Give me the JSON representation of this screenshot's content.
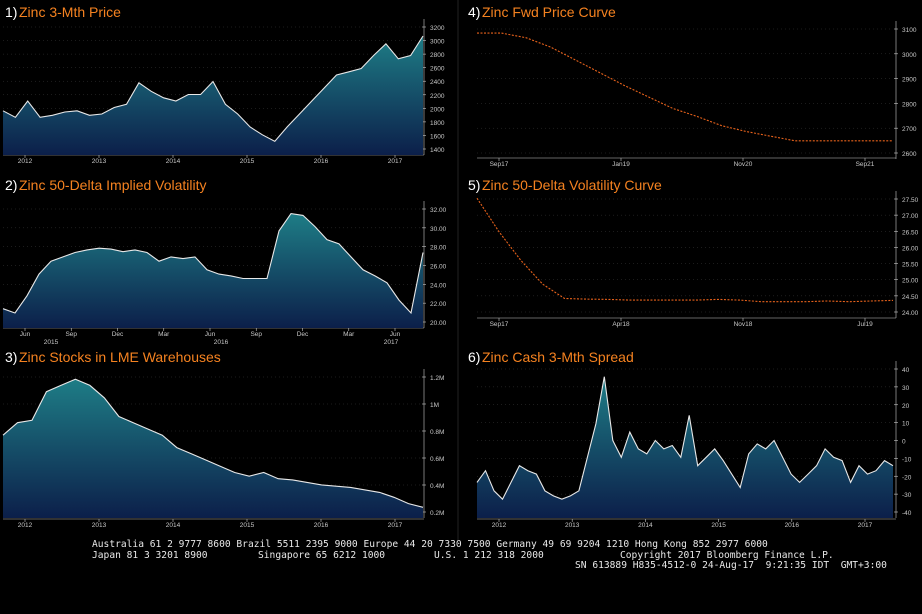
{
  "colors": {
    "background": "#000000",
    "title": "#f58220",
    "title_number": "#ffffff",
    "area_top": "#1e7d86",
    "area_bottom": "#0c1f4a",
    "area_line": "#e8e8e8",
    "curve": "#e8621b",
    "axis_text": "#c8c8c8",
    "grid": "#3a3a3a"
  },
  "chart_data": [
    {
      "type": "area",
      "number": "1)",
      "title": "Zinc 3-Mth Price",
      "x_ticks": [
        "2012",
        "2013",
        "2014",
        "2015",
        "2016",
        "2017"
      ],
      "y_ticks": [
        "3200",
        "3000",
        "2800",
        "2600",
        "2400",
        "2200",
        "2000",
        "1800",
        "1600",
        "1400"
      ],
      "ylim": [
        1300,
        3300
      ],
      "series": [
        {
          "values": [
            1950,
            1850,
            2100,
            1850,
            1880,
            1930,
            1950,
            1880,
            1900,
            2000,
            2050,
            2380,
            2250,
            2150,
            2100,
            2200,
            2200,
            2400,
            2050,
            1900,
            1700,
            1580,
            1480,
            1700,
            1900,
            2100,
            2300,
            2500,
            2550,
            2600,
            2800,
            2980,
            2750,
            2800,
            3100
          ]
        }
      ]
    },
    {
      "type": "line",
      "number": "4)",
      "title": "Zinc Fwd Price Curve",
      "x_ticks": [
        "Sep17",
        "Jan19",
        "Nov20",
        "Sep21"
      ],
      "y_ticks": [
        "3100",
        "3000",
        "2900",
        "2800",
        "2700",
        "2600"
      ],
      "ylim": [
        2570,
        3140
      ],
      "series": [
        {
          "values": [
            3105,
            3105,
            3085,
            3045,
            2990,
            2935,
            2880,
            2830,
            2780,
            2745,
            2705,
            2680,
            2660,
            2640,
            2640,
            2640,
            2640,
            2640
          ]
        }
      ]
    },
    {
      "type": "area",
      "number": "2)",
      "title": "Zinc 50-Delta Implied Volatility",
      "x_ticks": [
        "Jun",
        "Sep",
        "Dec",
        "Mar",
        "Jun",
        "Sep",
        "Dec",
        "Mar",
        "Jun"
      ],
      "x_year_ticks": [
        "2015",
        "2016",
        "2017"
      ],
      "y_ticks": [
        "32.00",
        "30.00",
        "28.00",
        "26.00",
        "24.00",
        "22.00",
        "20.00"
      ],
      "ylim": [
        19,
        33
      ],
      "series": [
        {
          "values": [
            21,
            20.5,
            22.5,
            25,
            26.5,
            27,
            27.5,
            27.8,
            28,
            27.9,
            27.6,
            27.8,
            27.5,
            26.5,
            27,
            26.8,
            27,
            25.5,
            25,
            24.8,
            24.5,
            24.5,
            24.5,
            30,
            32,
            31.8,
            30.5,
            29,
            28.5,
            27,
            25.5,
            24.8,
            24,
            22,
            20.5,
            27.5
          ]
        }
      ]
    },
    {
      "type": "line",
      "number": "5)",
      "title": "Zinc 50-Delta Volatility Curve",
      "x_ticks": [
        "Sep17",
        "Apr18",
        "Nov18",
        "Jul19"
      ],
      "y_ticks": [
        "27.50",
        "27.00",
        "26.50",
        "26.00",
        "25.50",
        "25.00",
        "24.50",
        "24.00"
      ],
      "ylim": [
        23.85,
        27.65
      ],
      "series": [
        {
          "values": [
            27.55,
            26.5,
            25.6,
            24.85,
            24.4,
            24.38,
            24.37,
            24.35,
            24.35,
            24.35,
            24.35,
            24.37,
            24.35,
            24.3,
            24.3,
            24.3,
            24.32,
            24.3,
            24.32,
            24.34
          ]
        }
      ]
    },
    {
      "type": "area",
      "number": "3)",
      "title": "Zinc Stocks in LME Warehouses",
      "x_ticks": [
        "2012",
        "2013",
        "2014",
        "2015",
        "2016",
        "2017"
      ],
      "y_ticks": [
        "1.2M",
        "1M",
        "0.8M",
        "0.6M",
        "0.4M",
        "0.2M"
      ],
      "ylim": [
        0.15,
        1.3
      ],
      "series": [
        {
          "values": [
            0.8,
            0.9,
            0.92,
            1.15,
            1.2,
            1.25,
            1.2,
            1.1,
            0.95,
            0.9,
            0.85,
            0.8,
            0.7,
            0.65,
            0.6,
            0.55,
            0.5,
            0.47,
            0.5,
            0.45,
            0.44,
            0.42,
            0.4,
            0.39,
            0.38,
            0.36,
            0.34,
            0.3,
            0.25,
            0.22
          ]
        }
      ]
    },
    {
      "type": "area",
      "number": "6)",
      "title": "Zinc Cash 3-Mth Spread",
      "x_ticks": [
        "2012",
        "2013",
        "2014",
        "2015",
        "2016",
        "2017"
      ],
      "y_ticks": [
        "40",
        "30",
        "20",
        "10",
        "0",
        "-10",
        "-20",
        "-30",
        "-40"
      ],
      "ylim": [
        -45,
        45
      ],
      "series": [
        {
          "values": [
            -25,
            -18,
            -30,
            -35,
            -25,
            -15,
            -18,
            -20,
            -30,
            -33,
            -35,
            -33,
            -30,
            -10,
            10,
            38,
            0,
            -10,
            5,
            -5,
            -8,
            0,
            -5,
            -3,
            -10,
            15,
            -15,
            -10,
            -5,
            -12,
            -20,
            -28,
            -8,
            -2,
            -5,
            0,
            -10,
            -20,
            -25,
            -20,
            -15,
            -5,
            -10,
            -12,
            -25,
            -15,
            -20,
            -18,
            -12,
            -15
          ]
        }
      ]
    }
  ],
  "footer": {
    "line1": "Australia 61 2 9777 8600 Brazil 5511 2395 9000 Europe 44 20 7330 7500 Germany 49 69 9204 1210 Hong Kong 852 2977 6000",
    "line2a": "Japan 81 3 3201 8900",
    "line2b": "Singapore 65 6212 1000",
    "line2c": "U.S. 1 212 318 2000",
    "line2d": "Copyright 2017 Bloomberg Finance L.P.",
    "line3": "SN 613889 H835-4512-0 24-Aug-17  9:21:35 IDT  GMT+3:00"
  }
}
